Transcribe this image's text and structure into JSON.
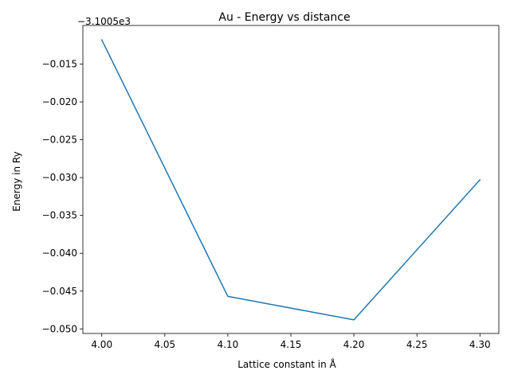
{
  "chart_data": {
    "type": "line",
    "title": "Au - Energy vs distance",
    "xlabel": "Lattice constant in Å",
    "ylabel": "Energy in Ry",
    "offset_text": "−3.1005e3",
    "x": [
      4.0,
      4.1,
      4.2,
      4.3
    ],
    "series": [
      {
        "values": [
          -0.0118,
          -0.0457,
          -0.0488,
          -0.0303
        ],
        "color": "#1f77b4"
      }
    ],
    "xlim": [
      3.985,
      4.315
    ],
    "ylim": [
      -0.0506,
      -0.0099
    ],
    "x_ticks": [
      4.0,
      4.05,
      4.1,
      4.15,
      4.2,
      4.25,
      4.3
    ],
    "x_tick_labels": [
      "4.00",
      "4.05",
      "4.10",
      "4.15",
      "4.20",
      "4.25",
      "4.30"
    ],
    "y_ticks": [
      -0.015,
      -0.02,
      -0.025,
      -0.03,
      -0.035,
      -0.04,
      -0.045,
      -0.05
    ],
    "y_tick_labels": [
      "−0.015",
      "−0.020",
      "−0.025",
      "−0.030",
      "−0.035",
      "−0.040",
      "−0.045",
      "−0.050"
    ],
    "grid": false,
    "legend": false
  }
}
